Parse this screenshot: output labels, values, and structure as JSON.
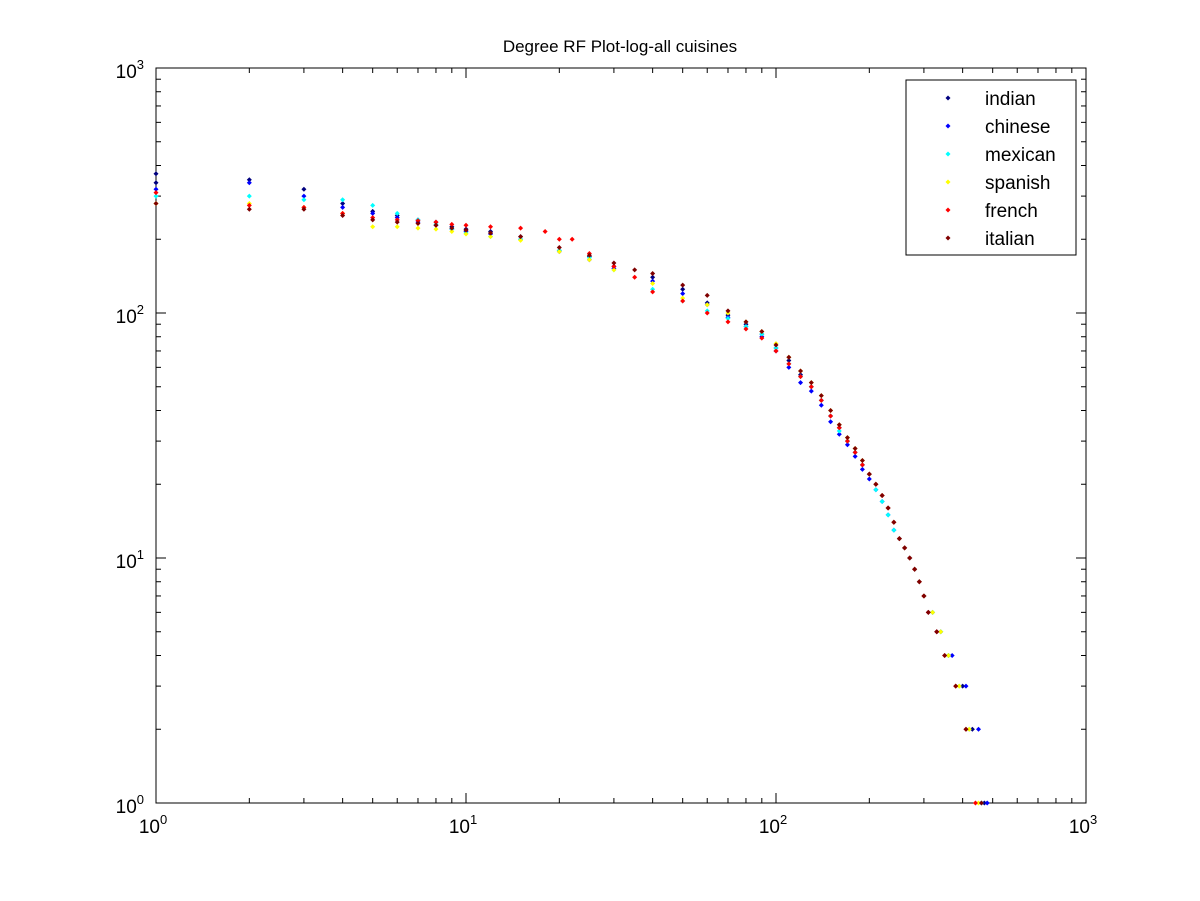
{
  "chart_data": {
    "type": "scatter",
    "title": "Degree RF Plot-log-all cuisines",
    "xlabel": "",
    "ylabel": "",
    "xscale": "log",
    "yscale": "log",
    "xlim": [
      1,
      1000
    ],
    "ylim": [
      1,
      1000
    ],
    "x_ticks": [
      {
        "base": "10",
        "exp": "0",
        "value": 1
      },
      {
        "base": "10",
        "exp": "1",
        "value": 10
      },
      {
        "base": "10",
        "exp": "2",
        "value": 100
      },
      {
        "base": "10",
        "exp": "3",
        "value": 1000
      }
    ],
    "y_ticks": [
      {
        "base": "10",
        "exp": "0",
        "value": 1
      },
      {
        "base": "10",
        "exp": "1",
        "value": 10
      },
      {
        "base": "10",
        "exp": "2",
        "value": 100
      },
      {
        "base": "10",
        "exp": "3",
        "value": 1000
      }
    ],
    "grid": false,
    "legend_position": "top-right",
    "series": [
      {
        "name": "indian",
        "color": "#00007f",
        "points": [
          [
            1,
            370
          ],
          [
            1,
            340
          ],
          [
            2,
            350
          ],
          [
            3,
            320
          ],
          [
            4,
            280
          ],
          [
            5,
            260
          ],
          [
            6,
            250
          ],
          [
            7,
            240
          ],
          [
            8,
            235
          ],
          [
            9,
            225
          ],
          [
            10,
            220
          ],
          [
            12,
            215
          ],
          [
            15,
            205
          ],
          [
            20,
            180
          ],
          [
            25,
            170
          ],
          [
            30,
            155
          ],
          [
            40,
            140
          ],
          [
            50,
            125
          ],
          [
            60,
            110
          ],
          [
            70,
            98
          ],
          [
            80,
            90
          ],
          [
            90,
            82
          ],
          [
            100,
            72
          ],
          [
            110,
            64
          ],
          [
            120,
            56
          ],
          [
            130,
            50
          ],
          [
            140,
            44
          ],
          [
            150,
            38
          ],
          [
            160,
            34
          ],
          [
            170,
            30
          ],
          [
            180,
            27
          ],
          [
            190,
            24
          ],
          [
            200,
            22
          ],
          [
            210,
            20
          ],
          [
            220,
            18
          ],
          [
            230,
            16
          ],
          [
            240,
            14
          ],
          [
            250,
            12
          ],
          [
            260,
            11
          ],
          [
            270,
            10
          ],
          [
            280,
            9
          ],
          [
            290,
            8
          ],
          [
            300,
            7
          ],
          [
            310,
            6
          ],
          [
            330,
            5
          ],
          [
            360,
            4
          ],
          [
            400,
            3
          ],
          [
            430,
            2
          ],
          [
            470,
            1
          ]
        ]
      },
      {
        "name": "chinese",
        "color": "#0000ff",
        "points": [
          [
            1,
            320
          ],
          [
            2,
            340
          ],
          [
            3,
            300
          ],
          [
            4,
            270
          ],
          [
            5,
            255
          ],
          [
            6,
            245
          ],
          [
            7,
            235
          ],
          [
            8,
            228
          ],
          [
            9,
            220
          ],
          [
            10,
            215
          ],
          [
            12,
            210
          ],
          [
            15,
            200
          ],
          [
            20,
            178
          ],
          [
            25,
            165
          ],
          [
            30,
            152
          ],
          [
            40,
            135
          ],
          [
            50,
            120
          ],
          [
            60,
            108
          ],
          [
            70,
            96
          ],
          [
            80,
            88
          ],
          [
            90,
            80
          ],
          [
            100,
            70
          ],
          [
            110,
            60
          ],
          [
            120,
            52
          ],
          [
            130,
            48
          ],
          [
            140,
            42
          ],
          [
            150,
            36
          ],
          [
            160,
            32
          ],
          [
            170,
            29
          ],
          [
            180,
            26
          ],
          [
            190,
            23
          ],
          [
            200,
            21
          ],
          [
            210,
            19
          ],
          [
            220,
            17
          ],
          [
            230,
            15
          ],
          [
            240,
            13
          ],
          [
            250,
            12
          ],
          [
            260,
            11
          ],
          [
            270,
            10
          ],
          [
            280,
            9
          ],
          [
            290,
            8
          ],
          [
            300,
            7
          ],
          [
            320,
            6
          ],
          [
            340,
            5
          ],
          [
            370,
            4
          ],
          [
            410,
            3
          ],
          [
            450,
            2
          ],
          [
            480,
            1
          ]
        ]
      },
      {
        "name": "mexican",
        "color": "#00ffff",
        "points": [
          [
            1,
            300
          ],
          [
            2,
            300
          ],
          [
            3,
            290
          ],
          [
            4,
            290
          ],
          [
            5,
            275
          ],
          [
            6,
            255
          ],
          [
            7,
            240
          ],
          [
            8,
            230
          ],
          [
            9,
            220
          ],
          [
            10,
            212
          ],
          [
            12,
            205
          ],
          [
            15,
            200
          ],
          [
            20,
            180
          ],
          [
            25,
            168
          ],
          [
            30,
            150
          ],
          [
            40,
            125
          ],
          [
            50,
            112
          ],
          [
            60,
            102
          ],
          [
            70,
            95
          ],
          [
            80,
            88
          ],
          [
            90,
            82
          ],
          [
            100,
            72
          ],
          [
            110,
            62
          ],
          [
            120,
            55
          ],
          [
            130,
            50
          ],
          [
            140,
            44
          ],
          [
            150,
            38
          ],
          [
            160,
            33
          ],
          [
            170,
            30
          ],
          [
            180,
            27
          ],
          [
            190,
            24
          ],
          [
            200,
            22
          ],
          [
            210,
            19
          ],
          [
            220,
            17
          ],
          [
            230,
            15
          ],
          [
            240,
            13
          ],
          [
            250,
            12
          ],
          [
            260,
            11
          ],
          [
            270,
            10
          ],
          [
            280,
            9
          ],
          [
            290,
            8
          ],
          [
            300,
            7
          ],
          [
            320,
            6
          ],
          [
            340,
            5
          ],
          [
            360,
            4
          ],
          [
            390,
            3
          ],
          [
            420,
            2
          ],
          [
            460,
            1
          ]
        ]
      },
      {
        "name": "spanish",
        "color": "#ffff00",
        "points": [
          [
            1,
            280
          ],
          [
            2,
            280
          ],
          [
            3,
            270
          ],
          [
            4,
            255
          ],
          [
            5,
            225
          ],
          [
            6,
            225
          ],
          [
            7,
            222
          ],
          [
            8,
            220
          ],
          [
            9,
            215
          ],
          [
            10,
            210
          ],
          [
            12,
            205
          ],
          [
            15,
            198
          ],
          [
            20,
            178
          ],
          [
            25,
            165
          ],
          [
            30,
            150
          ],
          [
            40,
            132
          ],
          [
            50,
            115
          ],
          [
            60,
            108
          ],
          [
            70,
            100
          ],
          [
            80,
            92
          ],
          [
            90,
            84
          ],
          [
            100,
            75
          ],
          [
            110,
            66
          ],
          [
            120,
            58
          ],
          [
            130,
            52
          ],
          [
            140,
            46
          ],
          [
            150,
            40
          ],
          [
            160,
            35
          ],
          [
            170,
            31
          ],
          [
            180,
            28
          ],
          [
            190,
            25
          ],
          [
            200,
            22
          ],
          [
            210,
            20
          ],
          [
            220,
            18
          ],
          [
            230,
            16
          ],
          [
            240,
            14
          ],
          [
            250,
            12
          ],
          [
            260,
            11
          ],
          [
            270,
            10
          ],
          [
            280,
            9
          ],
          [
            290,
            8
          ],
          [
            300,
            7
          ],
          [
            320,
            6
          ],
          [
            340,
            5
          ],
          [
            360,
            4
          ],
          [
            390,
            3
          ],
          [
            420,
            2
          ],
          [
            450,
            1
          ]
        ]
      },
      {
        "name": "french",
        "color": "#ff0000",
        "points": [
          [
            1,
            310
          ],
          [
            2,
            275
          ],
          [
            3,
            270
          ],
          [
            4,
            255
          ],
          [
            5,
            245
          ],
          [
            6,
            240
          ],
          [
            7,
            238
          ],
          [
            8,
            235
          ],
          [
            9,
            230
          ],
          [
            10,
            228
          ],
          [
            12,
            225
          ],
          [
            15,
            222
          ],
          [
            18,
            215
          ],
          [
            20,
            200
          ],
          [
            22,
            200
          ],
          [
            25,
            175
          ],
          [
            30,
            155
          ],
          [
            35,
            140
          ],
          [
            40,
            122
          ],
          [
            50,
            112
          ],
          [
            60,
            100
          ],
          [
            70,
            92
          ],
          [
            80,
            86
          ],
          [
            90,
            79
          ],
          [
            100,
            70
          ],
          [
            110,
            62
          ],
          [
            120,
            55
          ],
          [
            130,
            50
          ],
          [
            140,
            44
          ],
          [
            150,
            38
          ],
          [
            160,
            34
          ],
          [
            170,
            30
          ],
          [
            180,
            27
          ],
          [
            190,
            24
          ],
          [
            200,
            22
          ],
          [
            210,
            20
          ],
          [
            220,
            18
          ],
          [
            230,
            16
          ],
          [
            240,
            14
          ],
          [
            250,
            12
          ],
          [
            260,
            11
          ],
          [
            270,
            10
          ],
          [
            280,
            9
          ],
          [
            290,
            8
          ],
          [
            300,
            7
          ],
          [
            310,
            6
          ],
          [
            330,
            5
          ],
          [
            350,
            4
          ],
          [
            380,
            3
          ],
          [
            410,
            2
          ],
          [
            440,
            1
          ]
        ]
      },
      {
        "name": "italian",
        "color": "#7f0000",
        "points": [
          [
            1,
            280
          ],
          [
            2,
            265
          ],
          [
            3,
            265
          ],
          [
            4,
            250
          ],
          [
            5,
            240
          ],
          [
            6,
            235
          ],
          [
            7,
            232
          ],
          [
            8,
            228
          ],
          [
            9,
            222
          ],
          [
            10,
            218
          ],
          [
            12,
            212
          ],
          [
            15,
            205
          ],
          [
            20,
            185
          ],
          [
            25,
            172
          ],
          [
            30,
            160
          ],
          [
            35,
            150
          ],
          [
            40,
            145
          ],
          [
            50,
            130
          ],
          [
            60,
            118
          ],
          [
            70,
            102
          ],
          [
            80,
            92
          ],
          [
            90,
            84
          ],
          [
            100,
            74
          ],
          [
            110,
            66
          ],
          [
            120,
            58
          ],
          [
            130,
            52
          ],
          [
            140,
            46
          ],
          [
            150,
            40
          ],
          [
            160,
            35
          ],
          [
            170,
            31
          ],
          [
            180,
            28
          ],
          [
            190,
            25
          ],
          [
            200,
            22
          ],
          [
            210,
            20
          ],
          [
            220,
            18
          ],
          [
            230,
            16
          ],
          [
            240,
            14
          ],
          [
            250,
            12
          ],
          [
            260,
            11
          ],
          [
            270,
            10
          ],
          [
            280,
            9
          ],
          [
            290,
            8
          ],
          [
            300,
            7
          ],
          [
            310,
            6
          ],
          [
            330,
            5
          ],
          [
            350,
            4
          ],
          [
            380,
            3
          ],
          [
            410,
            2
          ],
          [
            460,
            1
          ]
        ]
      }
    ]
  }
}
